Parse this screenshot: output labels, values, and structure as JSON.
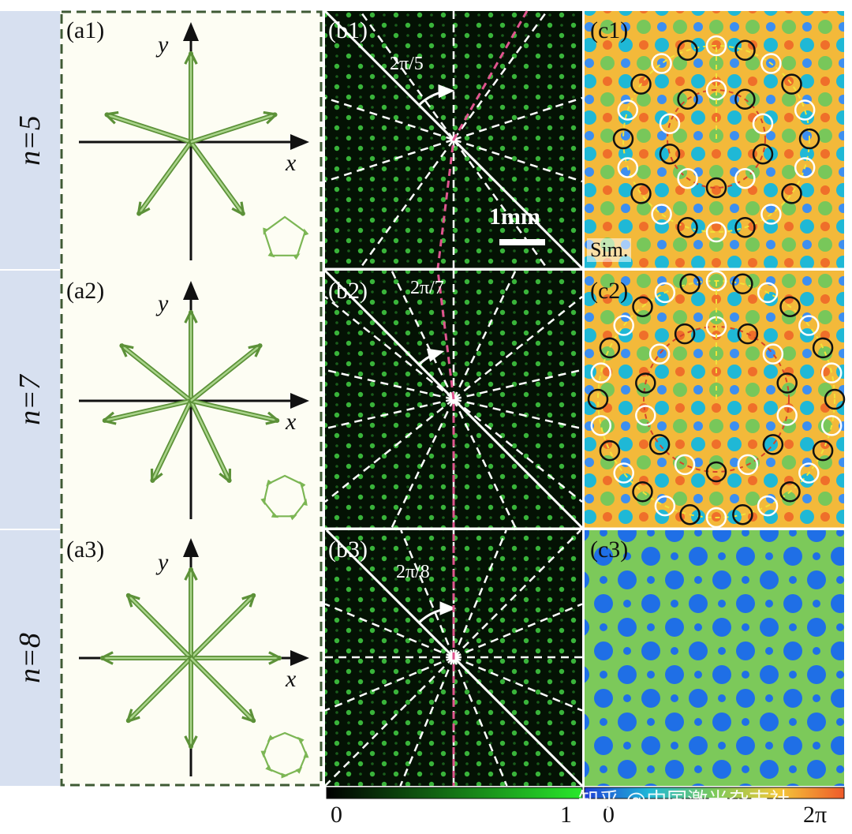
{
  "rows": [
    {
      "label": "n=5",
      "n": 5
    },
    {
      "label": "n=7",
      "n": 7
    },
    {
      "label": "n=8",
      "n": 8
    }
  ],
  "panels_a": [
    "(a1)",
    "(a2)",
    "(a3)"
  ],
  "panels_b": [
    "(b1)",
    "(b2)",
    "(b3)"
  ],
  "panels_c": [
    "(c1)",
    "(c2)",
    "(c3)"
  ],
  "axis_x": "x",
  "axis_y": "y",
  "angles": [
    "2π/5",
    "2π/7",
    "2π/8"
  ],
  "scale_bar": "1mm",
  "sim_label": "Sim.",
  "colorbar_intensity": {
    "min": "0",
    "max": "1"
  },
  "colorbar_phase": {
    "min": "0",
    "max": "2π"
  },
  "watermark": "知乎 @中国激光杂志社",
  "colors": {
    "arrow_green": "#6fa44a",
    "arrow_light": "#a9d48a",
    "panel_a_bg": "#fdfdf3",
    "row_label_bg": "#d7e0f0",
    "dashed_frame": "#3e5a34",
    "magenta_line": "#e0558f",
    "phase_blue": "#1f6fe6",
    "phase_green": "#7cc95a"
  }
}
